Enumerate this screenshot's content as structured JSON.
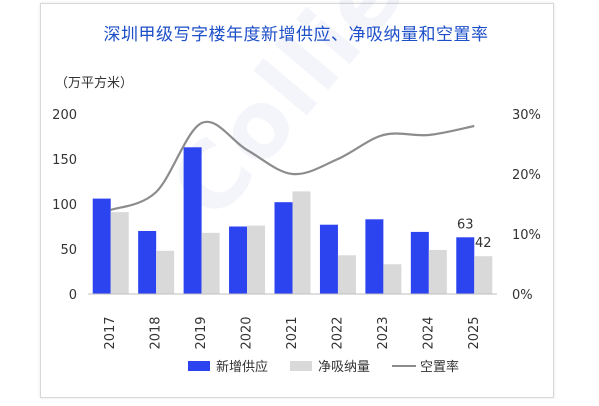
{
  "chart_data": {
    "type": "bar",
    "title": "深圳甲级写字楼年度新增供应、净吸纳量和空置率",
    "unit_label": "（万平方米）",
    "watermark": "Colliers",
    "categories": [
      "2017",
      "2018",
      "2019",
      "2020",
      "2021",
      "2022",
      "2023",
      "2024",
      "2025"
    ],
    "series": [
      {
        "name": "新增供应",
        "type": "bar",
        "axis": "left",
        "color": "#2c43f0",
        "values": [
          106,
          70,
          163,
          75,
          102,
          77,
          83,
          69,
          63
        ]
      },
      {
        "name": "净吸纳量",
        "type": "bar",
        "axis": "left",
        "color": "#d9d9d9",
        "values": [
          91,
          48,
          68,
          76,
          114,
          43,
          33,
          49,
          42
        ]
      },
      {
        "name": "空置率",
        "type": "line",
        "axis": "right",
        "color": "#8c8c8c",
        "values": [
          14,
          17,
          28.5,
          24,
          20,
          22.5,
          26.5,
          26.5,
          28
        ]
      }
    ],
    "data_labels": [
      {
        "series": 0,
        "index": 8,
        "text": "63"
      },
      {
        "series": 1,
        "index": 8,
        "text": "42"
      }
    ],
    "yaxis_left": {
      "min": 0,
      "max": 200,
      "ticks": [
        "0",
        "50",
        "100",
        "150",
        "200"
      ]
    },
    "yaxis_right": {
      "min": 0,
      "max": 30,
      "ticks": [
        "0%",
        "10%",
        "20%",
        "30%"
      ]
    },
    "legend_position": "bottom-center",
    "grid": false
  }
}
